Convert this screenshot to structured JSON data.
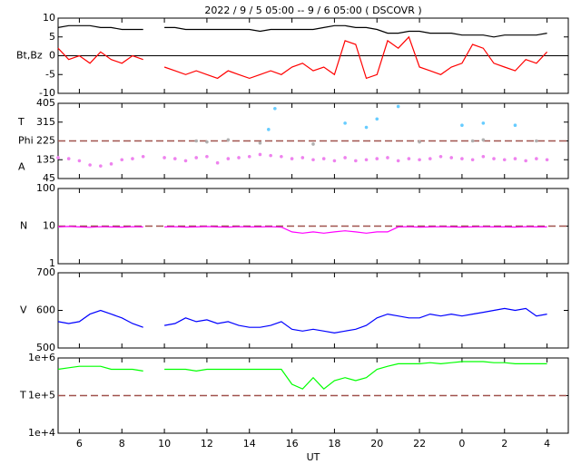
{
  "title": "2022 /  9 /  5   05:00  --   9 /  6   05:00  ( DSCOVR )",
  "xaxis": {
    "label": "UT",
    "xlim": [
      5,
      29
    ],
    "xticks": [
      6,
      8,
      10,
      12,
      14,
      16,
      18,
      20,
      22,
      {
        "value": 24,
        "label": "0"
      },
      {
        "value": 26,
        "label": "2"
      },
      {
        "value": 28,
        "label": "4"
      }
    ]
  },
  "chart_data": [
    {
      "type": "line",
      "ylabel": "Bt,Bz",
      "ylim": [
        -10,
        10
      ],
      "yticks": [
        -10,
        -5,
        0,
        5,
        10
      ],
      "hlines": [
        0
      ],
      "hline_color": "#000000",
      "hline_dashed": false,
      "x": [
        5,
        5.5,
        6,
        6.5,
        7,
        7.5,
        8,
        8.5,
        9,
        9.5,
        10,
        10.5,
        11,
        11.5,
        12,
        12.5,
        13,
        13.5,
        14,
        14.5,
        15,
        15.5,
        16,
        16.5,
        17,
        17.5,
        18,
        18.5,
        19,
        19.5,
        20,
        20.5,
        21,
        21.5,
        22,
        22.5,
        23,
        23.5,
        24,
        24.5,
        25,
        25.5,
        26,
        26.5,
        27,
        27.5,
        28
      ],
      "series": [
        {
          "color": "#000000",
          "values": [
            7.5,
            8,
            8,
            8,
            7.5,
            7.5,
            7,
            7,
            7,
            null,
            7.5,
            7.5,
            7,
            7,
            7,
            7,
            7,
            7,
            7,
            6.5,
            7,
            7,
            7,
            7,
            7,
            7.5,
            8,
            8,
            7.5,
            7.5,
            7,
            6,
            6,
            6.5,
            6.5,
            6,
            6,
            6,
            5.5,
            5.5,
            5.5,
            5,
            5.5,
            5.5,
            5.5,
            5.5,
            6
          ]
        },
        {
          "color": "#ff0000",
          "values": [
            2,
            -1,
            0,
            -2,
            1,
            -1,
            -2,
            0,
            -1,
            null,
            -3,
            -4,
            -5,
            -4,
            -5,
            -6,
            -4,
            -5,
            -6,
            -5,
            -4,
            -5,
            -3,
            -2,
            -4,
            -3,
            -5,
            4,
            3,
            -6,
            -5,
            4,
            2,
            5,
            -3,
            -4,
            -5,
            -3,
            -2,
            3,
            2,
            -2,
            -3,
            -4,
            -1,
            -2,
            1
          ]
        }
      ]
    },
    {
      "type": "scatter",
      "ylabels": [
        "A",
        "Phi",
        "T"
      ],
      "ylim": [
        45,
        405
      ],
      "yticks": [
        45,
        135,
        225,
        315,
        405
      ],
      "hlines": [
        225
      ],
      "hline_color": "#a0524d",
      "hline_dashed": true,
      "x": [
        5,
        5.5,
        6,
        6.5,
        7,
        7.5,
        8,
        8.5,
        9,
        9.5,
        10,
        10.5,
        11,
        11.5,
        12,
        12.5,
        13,
        13.5,
        14,
        14.5,
        15,
        15.5,
        16,
        16.5,
        17,
        17.5,
        18,
        18.5,
        19,
        19.5,
        20,
        20.5,
        21,
        21.5,
        22,
        22.5,
        23,
        23.5,
        24,
        24.5,
        25,
        25.5,
        26,
        26.5,
        27,
        27.5,
        28
      ],
      "series": [
        {
          "color": "#ee82ee",
          "values": [
            145,
            140,
            130,
            110,
            105,
            115,
            135,
            140,
            150,
            null,
            145,
            140,
            130,
            145,
            150,
            120,
            140,
            145,
            150,
            160,
            155,
            150,
            140,
            145,
            135,
            140,
            130,
            145,
            130,
            135,
            140,
            145,
            130,
            140,
            135,
            140,
            150,
            145,
            140,
            135,
            150,
            140,
            135,
            140,
            130,
            140,
            135
          ]
        },
        {
          "color": "#b0b0b0",
          "x": [
            11.5,
            12,
            13,
            14.5,
            17,
            22,
            24.5,
            25,
            27.5
          ],
          "values": [
            225,
            220,
            230,
            215,
            210,
            220,
            225,
            230,
            225
          ]
        },
        {
          "color": "#66ccff",
          "x": [
            14.9,
            15.2,
            18.5,
            19.5,
            20,
            21,
            24,
            25,
            26.5
          ],
          "values": [
            280,
            380,
            310,
            290,
            330,
            390,
            300,
            310,
            300
          ]
        }
      ]
    },
    {
      "type": "line",
      "ylabel": "N",
      "log": true,
      "ylim": [
        1,
        100
      ],
      "yticks": [
        1,
        10,
        100
      ],
      "hlines": [
        10
      ],
      "hline_color": "#a0524d",
      "hline_dashed": true,
      "x": [
        5,
        5.5,
        6,
        6.5,
        7,
        7.5,
        8,
        8.5,
        9,
        9.5,
        10,
        10.5,
        11,
        11.5,
        12,
        12.5,
        13,
        13.5,
        14,
        14.5,
        15,
        15.5,
        16,
        16.5,
        17,
        17.5,
        18,
        18.5,
        19,
        19.5,
        20,
        20.5,
        21,
        21.5,
        22,
        22.5,
        23,
        23.5,
        24,
        24.5,
        25,
        25.5,
        26,
        26.5,
        27,
        27.5,
        28
      ],
      "series": [
        {
          "color": "#ff00ff",
          "values": [
            9.5,
            9.8,
            9.5,
            9.3,
            9.6,
            9.5,
            9.4,
            9.6,
            9.5,
            null,
            9.5,
            9.6,
            9.4,
            9.5,
            9.7,
            9.5,
            9.4,
            9.6,
            9.5,
            9.5,
            9.6,
            9.4,
            7,
            6.5,
            7,
            6.5,
            7,
            7.5,
            7,
            6.5,
            7,
            7,
            9.5,
            9.6,
            9.4,
            9.5,
            9.6,
            9.5,
            9.4,
            9.5,
            9.6,
            9.5,
            9.5,
            9.4,
            9.6,
            9.5,
            9.5
          ]
        }
      ]
    },
    {
      "type": "line",
      "ylabel": "V",
      "ylim": [
        500,
        700
      ],
      "yticks": [
        500,
        600,
        700
      ],
      "x": [
        5,
        5.5,
        6,
        6.5,
        7,
        7.5,
        8,
        8.5,
        9,
        9.5,
        10,
        10.5,
        11,
        11.5,
        12,
        12.5,
        13,
        13.5,
        14,
        14.5,
        15,
        15.5,
        16,
        16.5,
        17,
        17.5,
        18,
        18.5,
        19,
        19.5,
        20,
        20.5,
        21,
        21.5,
        22,
        22.5,
        23,
        23.5,
        24,
        24.5,
        25,
        25.5,
        26,
        26.5,
        27,
        27.5,
        28
      ],
      "series": [
        {
          "color": "#0000ff",
          "values": [
            570,
            565,
            570,
            590,
            600,
            590,
            580,
            565,
            555,
            null,
            560,
            565,
            580,
            570,
            575,
            565,
            570,
            560,
            555,
            555,
            560,
            570,
            550,
            545,
            550,
            545,
            540,
            545,
            550,
            560,
            580,
            590,
            585,
            580,
            580,
            590,
            585,
            590,
            585,
            590,
            595,
            600,
            605,
            600,
            605,
            585,
            590
          ]
        }
      ]
    },
    {
      "type": "line",
      "ylabel": "T",
      "log": true,
      "ylim": [
        10000,
        1000000
      ],
      "yticks": [
        {
          "value": 10000,
          "label": "1e+4"
        },
        {
          "value": 100000,
          "label": "1e+5"
        },
        {
          "value": 1000000,
          "label": "1e+6"
        }
      ],
      "hlines": [
        100000
      ],
      "hline_color": "#a0524d",
      "hline_dashed": true,
      "x": [
        5,
        5.5,
        6,
        6.5,
        7,
        7.5,
        8,
        8.5,
        9,
        9.5,
        10,
        10.5,
        11,
        11.5,
        12,
        12.5,
        13,
        13.5,
        14,
        14.5,
        15,
        15.5,
        16,
        16.5,
        17,
        17.5,
        18,
        18.5,
        19,
        19.5,
        20,
        20.5,
        21,
        21.5,
        22,
        22.5,
        23,
        23.5,
        24,
        24.5,
        25,
        25.5,
        26,
        26.5,
        27,
        27.5,
        28
      ],
      "series": [
        {
          "color": "#00ff00",
          "values": [
            500000,
            550000,
            600000,
            600000,
            600000,
            500000,
            500000,
            500000,
            450000,
            null,
            500000,
            500000,
            500000,
            450000,
            500000,
            500000,
            500000,
            500000,
            500000,
            500000,
            500000,
            500000,
            200000,
            150000,
            300000,
            150000,
            250000,
            300000,
            250000,
            300000,
            500000,
            600000,
            700000,
            700000,
            700000,
            750000,
            700000,
            750000,
            800000,
            800000,
            800000,
            750000,
            750000,
            700000,
            700000,
            700000,
            700000
          ]
        }
      ]
    }
  ]
}
